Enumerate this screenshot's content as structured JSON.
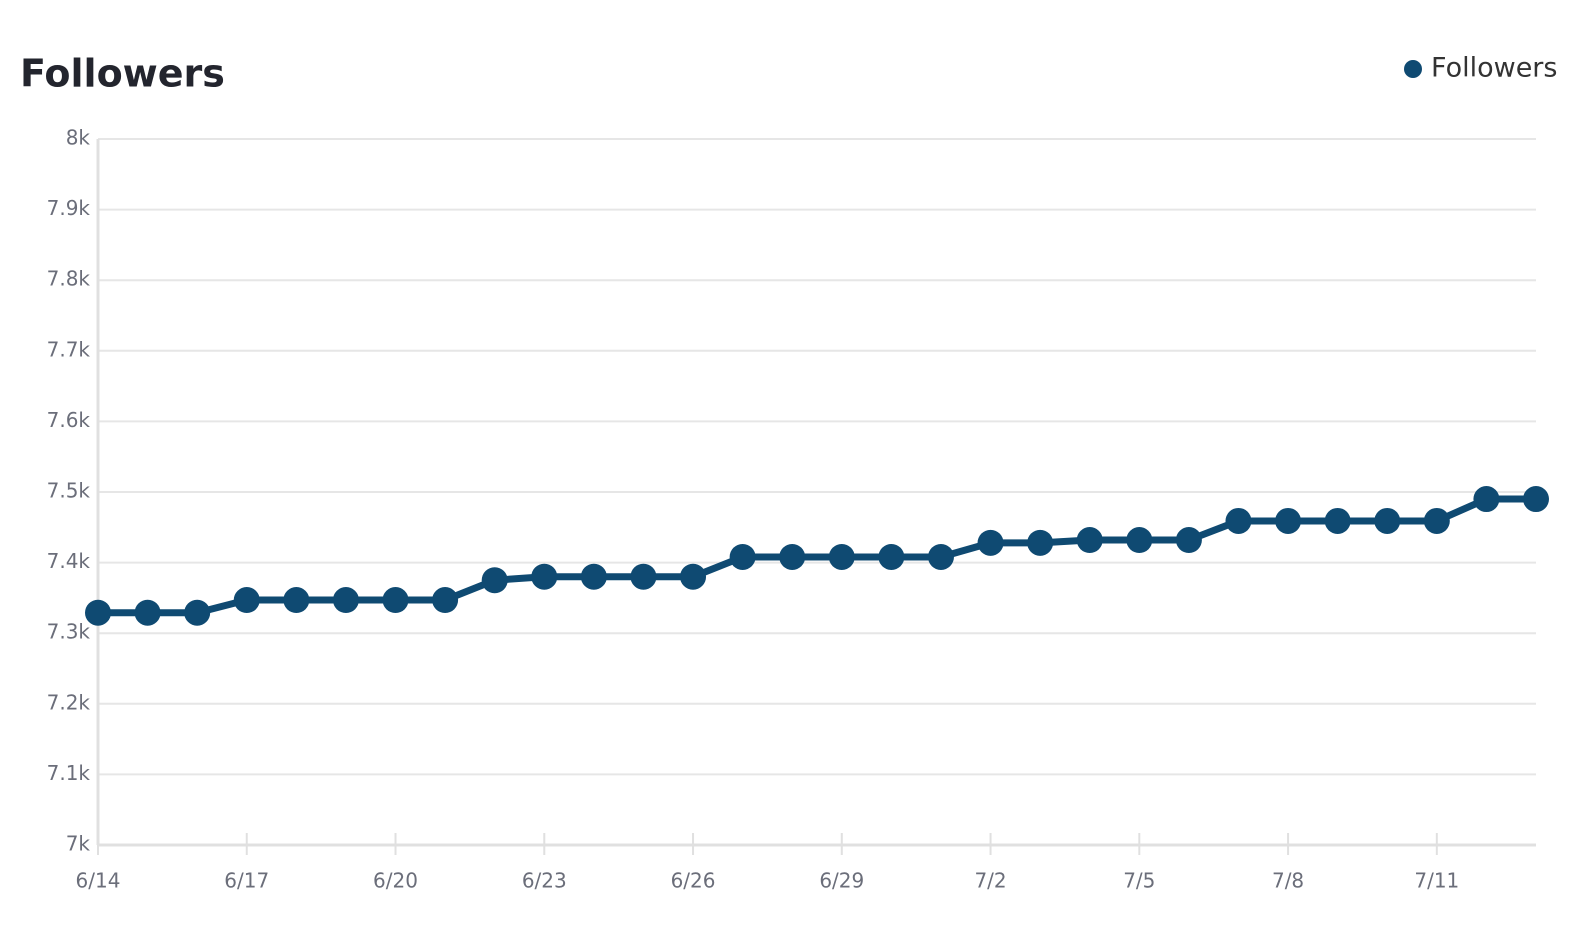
{
  "chart_data": {
    "type": "line",
    "title": "Followers",
    "categories": [
      "6/14",
      null,
      null,
      "6/17",
      null,
      null,
      "6/20",
      null,
      null,
      "6/23",
      null,
      null,
      "6/26",
      null,
      null,
      "6/29",
      null,
      null,
      "7/2",
      null,
      null,
      "7/5",
      null,
      null,
      "7/8",
      null,
      null,
      "7/11",
      null,
      null
    ],
    "series": [
      {
        "name": "Followers",
        "color": "#0f4a72",
        "values": [
          7329,
          7329,
          7329,
          7347,
          7347,
          7347,
          7347,
          7347,
          7375,
          7380,
          7380,
          7380,
          7380,
          7408,
          7408,
          7408,
          7408,
          7408,
          7428,
          7428,
          7432,
          7432,
          7432,
          7459,
          7459,
          7459,
          7459,
          7459,
          7490,
          7490
        ]
      }
    ],
    "ylim": [
      7000,
      8000
    ],
    "yticks": [
      {
        "value": 7000,
        "label": "7k"
      },
      {
        "value": 7100,
        "label": "7.1k"
      },
      {
        "value": 7200,
        "label": "7.2k"
      },
      {
        "value": 7300,
        "label": "7.3k"
      },
      {
        "value": 7400,
        "label": "7.4k"
      },
      {
        "value": 7500,
        "label": "7.5k"
      },
      {
        "value": 7600,
        "label": "7.6k"
      },
      {
        "value": 7700,
        "label": "7.7k"
      },
      {
        "value": 7800,
        "label": "7.8k"
      },
      {
        "value": 7900,
        "label": "7.9k"
      },
      {
        "value": 8000,
        "label": "8k"
      }
    ],
    "grid": true,
    "legend": "top-right"
  }
}
